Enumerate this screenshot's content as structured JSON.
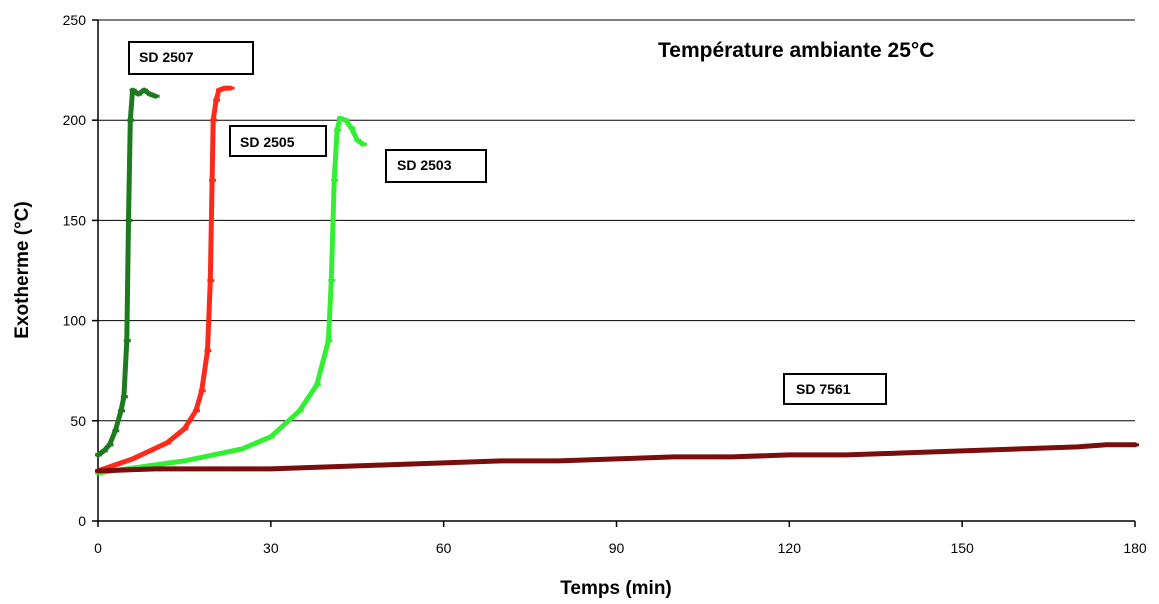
{
  "chart_data": {
    "type": "line",
    "title": "Température ambiante 25°C",
    "xlabel": "Temps (min)",
    "ylabel": "Exotherme (°C)",
    "xlim": [
      0,
      180
    ],
    "ylim": [
      0,
      250
    ],
    "xticks": [
      0,
      30,
      60,
      90,
      120,
      150,
      180
    ],
    "yticks": [
      0,
      50,
      100,
      150,
      200,
      250
    ],
    "grid": "horizontal",
    "series": [
      {
        "name": "SD 2507",
        "color": "#1e7a1e",
        "x": [
          0,
          1,
          2,
          3,
          4,
          4.5,
          5,
          5.3,
          5.6,
          6,
          7,
          8,
          9,
          10
        ],
        "y": [
          33,
          35,
          38,
          45,
          55,
          62,
          90,
          150,
          200,
          215,
          213,
          215,
          213,
          212
        ]
      },
      {
        "name": "SD 2505",
        "color": "#ff2a1a",
        "x": [
          0,
          3,
          6,
          9,
          12,
          15,
          17,
          18,
          19,
          19.5,
          19.8,
          20,
          20.5,
          21,
          22,
          23
        ],
        "y": [
          25,
          28,
          31,
          35,
          39,
          46,
          55,
          65,
          85,
          120,
          170,
          200,
          210,
          215,
          216,
          216
        ]
      },
      {
        "name": "SD 2503",
        "color": "#33ee33",
        "x": [
          0,
          5,
          10,
          15,
          20,
          25,
          30,
          35,
          38,
          40,
          40.5,
          41,
          41.5,
          42,
          43,
          44,
          45,
          46
        ],
        "y": [
          24,
          26,
          28,
          30,
          33,
          36,
          42,
          55,
          68,
          90,
          120,
          170,
          195,
          201,
          200,
          196,
          190,
          188
        ]
      },
      {
        "name": "SD 7561",
        "color": "#7a0d0d",
        "x": [
          0,
          10,
          20,
          30,
          40,
          50,
          60,
          70,
          80,
          90,
          100,
          110,
          120,
          130,
          140,
          150,
          160,
          170,
          175,
          180
        ],
        "y": [
          25,
          26,
          26,
          26,
          27,
          28,
          29,
          30,
          30,
          31,
          32,
          32,
          33,
          33,
          34,
          35,
          36,
          37,
          38,
          38
        ]
      }
    ]
  }
}
